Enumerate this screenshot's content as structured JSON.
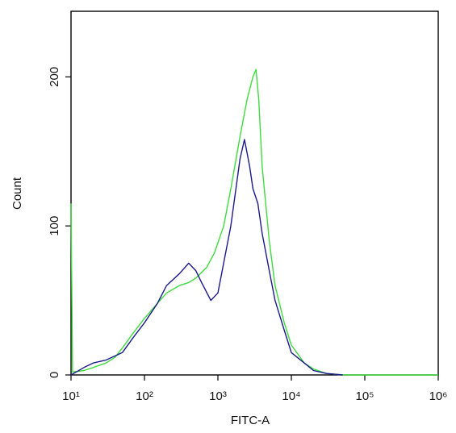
{
  "chart_data": {
    "type": "line",
    "x_label": "FITC-A",
    "y_label": "Count",
    "x_scale": "log",
    "xlim": [
      10,
      1000000
    ],
    "xticks": [
      {
        "value": 10,
        "label": "10¹"
      },
      {
        "value": 100,
        "label": "10²"
      },
      {
        "value": 1000,
        "label": "10³"
      },
      {
        "value": 10000,
        "label": "10⁴"
      },
      {
        "value": 100000,
        "label": "10⁵"
      },
      {
        "value": 1000000,
        "label": "10⁶"
      }
    ],
    "ylim": [
      0,
      244
    ],
    "yticks": [
      0,
      100,
      200
    ],
    "series": [
      {
        "color": "#3ddc3d",
        "x": [
          10,
          10.5,
          15,
          20,
          30,
          40,
          50,
          70,
          100,
          150,
          200,
          300,
          400,
          500,
          700,
          900,
          1200,
          1500,
          2000,
          2500,
          3000,
          3300,
          3600,
          4000,
          5000,
          6000,
          8000,
          10000,
          15000,
          20000,
          30000,
          50000,
          100000,
          1000000
        ],
        "values": [
          115,
          2,
          3,
          5,
          8,
          12,
          18,
          28,
          38,
          48,
          55,
          60,
          62,
          65,
          72,
          82,
          100,
          125,
          160,
          185,
          200,
          205,
          185,
          140,
          90,
          60,
          35,
          20,
          8,
          4,
          1,
          0,
          0,
          0
        ]
      },
      {
        "color": "#1a1a8c",
        "x": [
          10,
          15,
          20,
          30,
          50,
          70,
          100,
          150,
          200,
          300,
          400,
          500,
          600,
          800,
          1000,
          1500,
          2000,
          2300,
          2700,
          3000,
          3500,
          4000,
          5000,
          6000,
          8000,
          10000,
          15000,
          20000,
          30000,
          50000
        ],
        "values": [
          0,
          5,
          8,
          10,
          15,
          25,
          35,
          48,
          60,
          68,
          75,
          70,
          62,
          50,
          55,
          100,
          145,
          158,
          140,
          125,
          115,
          95,
          70,
          50,
          30,
          15,
          8,
          3,
          1,
          0
        ]
      }
    ]
  }
}
